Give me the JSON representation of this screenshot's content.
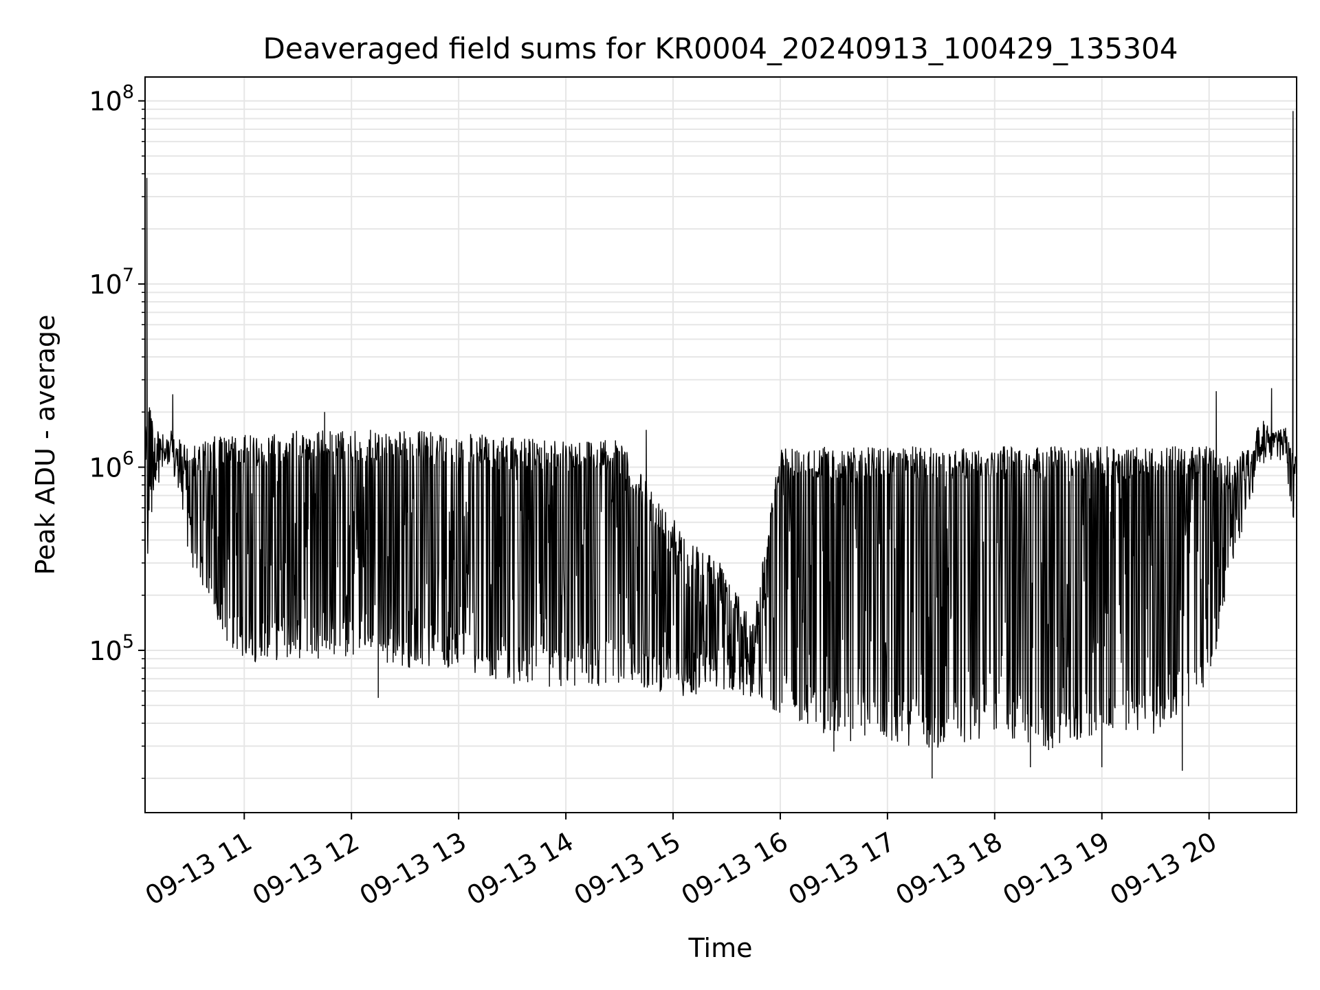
{
  "chart_data": {
    "type": "line",
    "title": "Deaveraged field sums for KR0004_20240913_100429_135304",
    "xlabel": "Time",
    "ylabel": "Peak ADU - average",
    "x_axis_type": "datetime",
    "x_range": [
      "2024-09-13T10:04:29",
      "2024-09-13T20:49:00"
    ],
    "x_ticks": [
      {
        "value": "2024-09-13T11:00:00",
        "label": "09-13 11"
      },
      {
        "value": "2024-09-13T12:00:00",
        "label": "09-13 12"
      },
      {
        "value": "2024-09-13T13:00:00",
        "label": "09-13 13"
      },
      {
        "value": "2024-09-13T14:00:00",
        "label": "09-13 14"
      },
      {
        "value": "2024-09-13T15:00:00",
        "label": "09-13 15"
      },
      {
        "value": "2024-09-13T16:00:00",
        "label": "09-13 16"
      },
      {
        "value": "2024-09-13T17:00:00",
        "label": "09-13 17"
      },
      {
        "value": "2024-09-13T18:00:00",
        "label": "09-13 18"
      },
      {
        "value": "2024-09-13T19:00:00",
        "label": "09-13 19"
      },
      {
        "value": "2024-09-13T20:00:00",
        "label": "09-13 20"
      }
    ],
    "y_scale": "log",
    "ylim": [
      13000,
      135000000
    ],
    "y_ticks": [
      {
        "value": 100000,
        "base": "10",
        "exp": "5"
      },
      {
        "value": 1000000,
        "base": "10",
        "exp": "6"
      },
      {
        "value": 10000000,
        "base": "10",
        "exp": "7"
      },
      {
        "value": 100000000,
        "base": "10",
        "exp": "8"
      }
    ],
    "grid": true,
    "legend": "none",
    "line_color": "#000000",
    "grid_color": "#e6e6e6",
    "envelope": [
      {
        "t": "2024-09-13T10:04:29",
        "hi": 1500000,
        "lo": 400000
      },
      {
        "t": "2024-09-13T10:06:00",
        "hi": 3000000,
        "lo": 300000
      },
      {
        "t": "2024-09-13T10:10:00",
        "hi": 1600000,
        "lo": 800000
      },
      {
        "t": "2024-09-13T10:20:00",
        "hi": 1500000,
        "lo": 900000
      },
      {
        "t": "2024-09-13T10:30:00",
        "hi": 1300000,
        "lo": 300000
      },
      {
        "t": "2024-09-13T10:45:00",
        "hi": 1500000,
        "lo": 120000
      },
      {
        "t": "2024-09-13T11:00:00",
        "hi": 1500000,
        "lo": 85000
      },
      {
        "t": "2024-09-13T11:30:00",
        "hi": 1600000,
        "lo": 90000
      },
      {
        "t": "2024-09-13T12:00:00",
        "hi": 1600000,
        "lo": 90000
      },
      {
        "t": "2024-09-13T12:30:00",
        "hi": 1600000,
        "lo": 80000
      },
      {
        "t": "2024-09-13T13:00:00",
        "hi": 1550000,
        "lo": 80000
      },
      {
        "t": "2024-09-13T13:30:00",
        "hi": 1450000,
        "lo": 65000
      },
      {
        "t": "2024-09-13T14:00:00",
        "hi": 1450000,
        "lo": 60000
      },
      {
        "t": "2024-09-13T14:30:00",
        "hi": 1400000,
        "lo": 65000
      },
      {
        "t": "2024-09-13T14:50:00",
        "hi": 700000,
        "lo": 60000
      },
      {
        "t": "2024-09-13T15:10:00",
        "hi": 400000,
        "lo": 55000
      },
      {
        "t": "2024-09-13T15:30:00",
        "hi": 300000,
        "lo": 60000
      },
      {
        "t": "2024-09-13T15:45:00",
        "hi": 150000,
        "lo": 55000
      },
      {
        "t": "2024-09-13T16:00:00",
        "hi": 1300000,
        "lo": 45000
      },
      {
        "t": "2024-09-13T16:30:00",
        "hi": 1300000,
        "lo": 32000
      },
      {
        "t": "2024-09-13T17:00:00",
        "hi": 1300000,
        "lo": 30000
      },
      {
        "t": "2024-09-13T17:30:00",
        "hi": 1300000,
        "lo": 28000
      },
      {
        "t": "2024-09-13T18:00:00",
        "hi": 1300000,
        "lo": 35000
      },
      {
        "t": "2024-09-13T18:30:00",
        "hi": 1300000,
        "lo": 28000
      },
      {
        "t": "2024-09-13T19:00:00",
        "hi": 1300000,
        "lo": 35000
      },
      {
        "t": "2024-09-13T19:30:00",
        "hi": 1300000,
        "lo": 35000
      },
      {
        "t": "2024-09-13T20:00:00",
        "hi": 1300000,
        "lo": 60000
      },
      {
        "t": "2024-09-13T20:15:00",
        "hi": 1100000,
        "lo": 350000
      },
      {
        "t": "2024-09-13T20:30:00",
        "hi": 1800000,
        "lo": 1000000
      },
      {
        "t": "2024-09-13T20:42:00",
        "hi": 1600000,
        "lo": 1100000
      },
      {
        "t": "2024-09-13T20:49:00",
        "hi": 1200000,
        "lo": 400000
      }
    ],
    "spikes": [
      {
        "t": "2024-09-13T10:05:30",
        "y": 38000000
      },
      {
        "t": "2024-09-13T10:20:00",
        "y": 2500000
      },
      {
        "t": "2024-09-13T11:45:00",
        "y": 2000000
      },
      {
        "t": "2024-09-13T14:45:00",
        "y": 1600000
      },
      {
        "t": "2024-09-13T20:04:00",
        "y": 2600000
      },
      {
        "t": "2024-09-13T20:35:00",
        "y": 2700000
      },
      {
        "t": "2024-09-13T20:47:00",
        "y": 88000000
      }
    ],
    "dips": [
      {
        "t": "2024-09-13T12:15:00",
        "y": 55000
      },
      {
        "t": "2024-09-13T16:30:00",
        "y": 28000
      },
      {
        "t": "2024-09-13T17:25:00",
        "y": 20000
      },
      {
        "t": "2024-09-13T18:20:00",
        "y": 23000
      },
      {
        "t": "2024-09-13T19:00:00",
        "y": 23000
      },
      {
        "t": "2024-09-13T19:45:00",
        "y": 22000
      }
    ]
  }
}
